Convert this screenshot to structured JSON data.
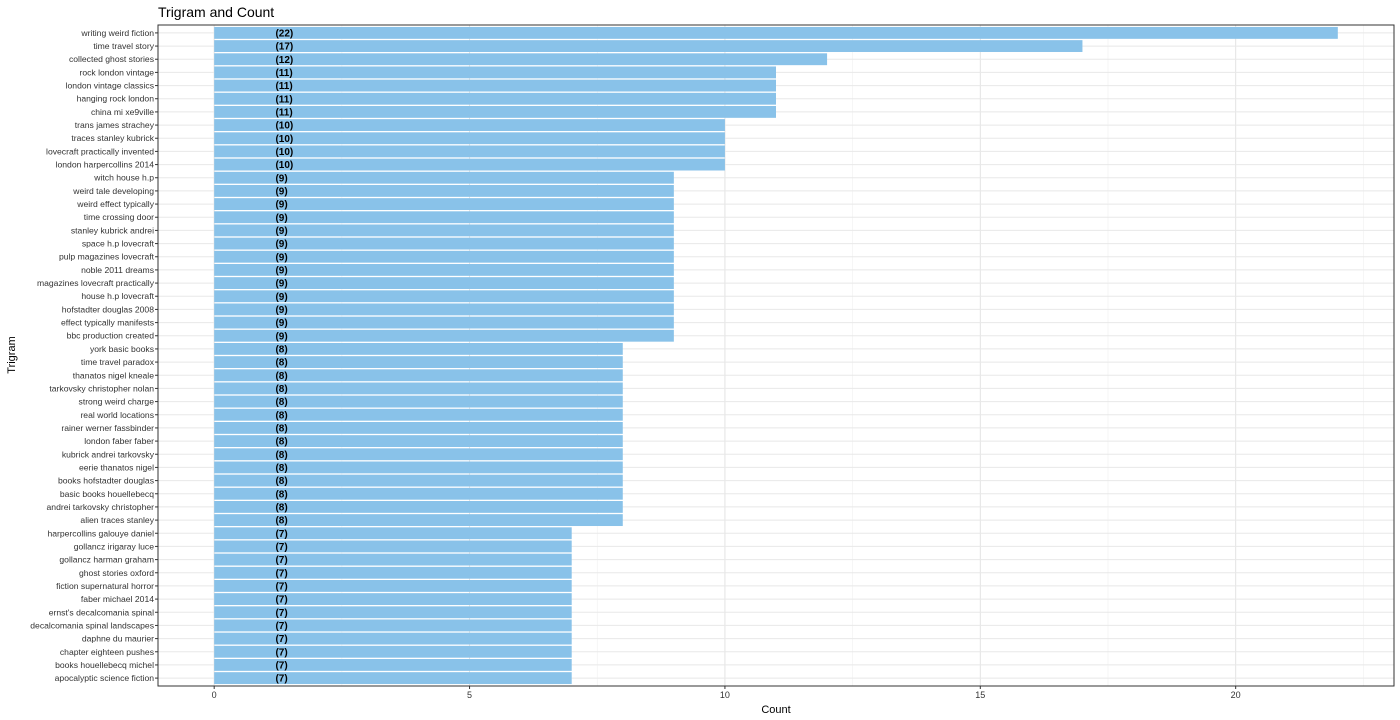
{
  "chart_data": {
    "type": "bar",
    "orientation": "horizontal",
    "title": "Trigram and Count",
    "xlabel": "Count",
    "ylabel": "Trigram",
    "xlim": [
      -1.1,
      23.1
    ],
    "x_ticks": [
      0,
      5,
      10,
      15,
      20
    ],
    "grid": true,
    "bar_color": "#89c2e9",
    "label_position_value": 1.2,
    "categories": [
      "writing weird fiction",
      "time travel story",
      "collected ghost stories",
      "rock london vintage",
      "london vintage classics",
      "hanging rock london",
      "china mi xe9ville",
      "trans james strachey",
      "traces stanley kubrick",
      "lovecraft practically invented",
      "london harpercollins 2014",
      "witch house h.p",
      "weird tale developing",
      "weird effect typically",
      "time crossing door",
      "stanley kubrick andrei",
      "space h.p lovecraft",
      "pulp magazines lovecraft",
      "noble 2011 dreams",
      "magazines lovecraft practically",
      "house h.p lovecraft",
      "hofstadter douglas 2008",
      "effect typically manifests",
      "bbc production created",
      "york basic books",
      "time travel paradox",
      "thanatos nigel kneale",
      "tarkovsky christopher nolan",
      "strong weird charge",
      "real world locations",
      "rainer werner fassbinder",
      "london faber faber",
      "kubrick andrei tarkovsky",
      "eerie thanatos nigel",
      "books hofstadter douglas",
      "basic books houellebecq",
      "andrei tarkovsky christopher",
      "alien traces stanley",
      "harpercollins galouye daniel",
      "gollancz irigaray luce",
      "gollancz harman graham",
      "ghost stories oxford",
      "fiction supernatural horror",
      "faber michael 2014",
      "ernst's decalcomania spinal",
      "decalcomania spinal landscapes",
      "daphne du maurier",
      "chapter eighteen pushes",
      "books houellebecq michel",
      "apocalyptic science fiction"
    ],
    "values": [
      22,
      17,
      12,
      11,
      11,
      11,
      11,
      10,
      10,
      10,
      10,
      9,
      9,
      9,
      9,
      9,
      9,
      9,
      9,
      9,
      9,
      9,
      9,
      9,
      8,
      8,
      8,
      8,
      8,
      8,
      8,
      8,
      8,
      8,
      8,
      8,
      8,
      8,
      7,
      7,
      7,
      7,
      7,
      7,
      7,
      7,
      7,
      7,
      7,
      7
    ],
    "data_labels": [
      "(22)",
      "(17)",
      "(12)",
      "(11)",
      "(11)",
      "(11)",
      "(11)",
      "(10)",
      "(10)",
      "(10)",
      "(10)",
      "(9)",
      "(9)",
      "(9)",
      "(9)",
      "(9)",
      "(9)",
      "(9)",
      "(9)",
      "(9)",
      "(9)",
      "(9)",
      "(9)",
      "(9)",
      "(8)",
      "(8)",
      "(8)",
      "(8)",
      "(8)",
      "(8)",
      "(8)",
      "(8)",
      "(8)",
      "(8)",
      "(8)",
      "(8)",
      "(8)",
      "(8)",
      "(7)",
      "(7)",
      "(7)",
      "(7)",
      "(7)",
      "(7)",
      "(7)",
      "(7)",
      "(7)",
      "(7)",
      "(7)",
      "(7)"
    ]
  }
}
